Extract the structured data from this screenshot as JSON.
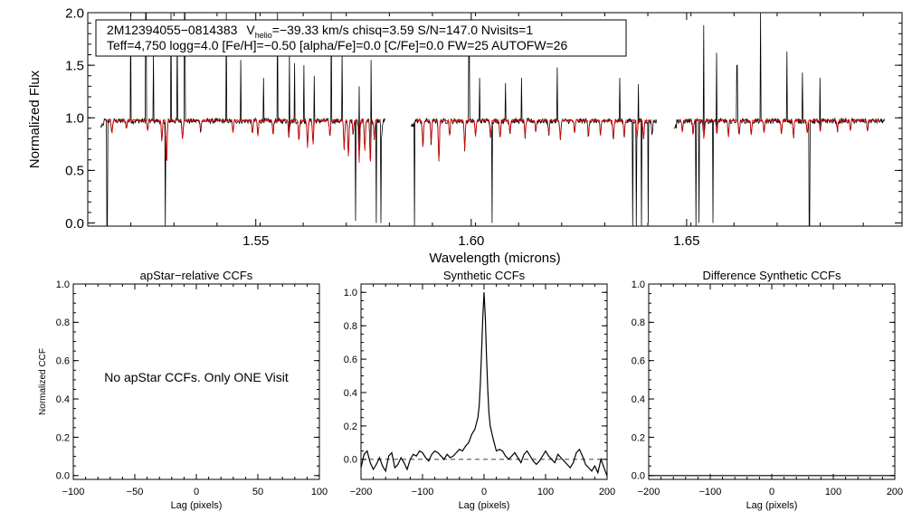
{
  "chart_data": [
    {
      "id": "spectrum",
      "type": "line",
      "xlabel": "Wavelength (microns)",
      "ylabel": "Normalized Flux",
      "xlim": [
        1.511,
        1.7
      ],
      "ylim": [
        -0.03,
        2.0
      ],
      "xticks": [
        1.55,
        1.6,
        1.65
      ],
      "xtick_labels": [
        "1.55",
        "1.60",
        "1.65"
      ],
      "yticks": [
        0.0,
        0.5,
        1.0,
        1.5,
        2.0
      ],
      "ytick_labels": [
        "0.0",
        "0.5",
        "1.0",
        "1.5",
        "2.0"
      ],
      "info": {
        "star_id": "2M12394055−0814383",
        "vhelio_prefix": "V",
        "vhelio_sub": "helio",
        "vhelio_rest": "=−39.33 km/s  chisq=3.59  S/N=147.0  Nvisits=1",
        "line2": "Teff=4,750 logg=4.0 [Fe/H]=−0.50 [alpha/Fe]=0.0 [C/Fe]=0.0 FW=25 AUTOFW=26"
      },
      "chips": [
        [
          1.514,
          1.58
        ],
        [
          1.586,
          1.643
        ],
        [
          1.647,
          1.696
        ]
      ],
      "series": [
        {
          "name": "observed",
          "color": "#000000",
          "continuum": 0.97,
          "emission_spikes": [
            [
              1.521,
              2.0
            ],
            [
              1.5245,
              2.0
            ],
            [
              1.5262,
              1.62
            ],
            [
              1.5303,
              2.0
            ],
            [
              1.5318,
              1.85
            ],
            [
              1.5335,
              2.0
            ],
            [
              1.5432,
              2.0
            ],
            [
              1.5465,
              1.55
            ],
            [
              1.5518,
              1.38
            ],
            [
              1.555,
              2.0
            ],
            [
              1.5578,
              1.6
            ],
            [
              1.559,
              1.52
            ],
            [
              1.5612,
              1.5
            ],
            [
              1.5636,
              1.4
            ],
            [
              1.5675,
              2.0
            ],
            [
              1.57,
              1.62
            ],
            [
              1.574,
              1.3
            ],
            [
              1.5768,
              1.55
            ],
            [
              1.578,
              1.38
            ],
            [
              1.5995,
              1.72
            ],
            [
              1.602,
              1.38
            ],
            [
              1.608,
              1.33
            ],
            [
              1.6117,
              1.38
            ],
            [
              1.62,
              1.48
            ],
            [
              1.6345,
              1.38
            ],
            [
              1.6388,
              1.32
            ],
            [
              1.654,
              1.88
            ],
            [
              1.657,
              1.62
            ],
            [
              1.6617,
              1.5
            ],
            [
              1.6672,
              2.0
            ],
            [
              1.6733,
              1.63
            ],
            [
              1.6769,
              1.43
            ],
            [
              1.681,
              1.38
            ]
          ],
          "absorption_spikes": [
            [
              1.5155,
              -0.03
            ],
            [
              1.529,
              -0.03
            ],
            [
              1.5732,
              0.02
            ],
            [
              1.578,
              0.0
            ],
            [
              1.579,
              0.0
            ],
            [
              1.5868,
              -0.03
            ],
            [
              1.6048,
              0.0
            ],
            [
              1.6375,
              -0.03
            ],
            [
              1.6383,
              -0.03
            ],
            [
              1.6395,
              -0.03
            ],
            [
              1.6411,
              0.0
            ],
            [
              1.6522,
              -0.03
            ],
            [
              1.6529,
              0.0
            ],
            [
              1.6561,
              0.0
            ],
            [
              1.6785,
              -0.03
            ]
          ]
        },
        {
          "name": "synthetic",
          "color": "#dd0000",
          "continuum": 0.975,
          "lines": [
            [
              1.5166,
              0.85
            ],
            [
              1.52,
              0.9
            ],
            [
              1.5249,
              0.88
            ],
            [
              1.5282,
              0.77
            ],
            [
              1.5293,
              0.56
            ],
            [
              1.533,
              0.8
            ],
            [
              1.5372,
              0.88
            ],
            [
              1.5447,
              0.86
            ],
            [
              1.5492,
              0.85
            ],
            [
              1.5505,
              0.83
            ],
            [
              1.554,
              0.85
            ],
            [
              1.5577,
              0.82
            ],
            [
              1.56,
              0.78
            ],
            [
              1.562,
              0.72
            ],
            [
              1.5633,
              0.75
            ],
            [
              1.5672,
              0.82
            ],
            [
              1.5705,
              0.7
            ],
            [
              1.5715,
              0.63
            ],
            [
              1.5726,
              0.86
            ],
            [
              1.574,
              0.58
            ],
            [
              1.5753,
              0.69
            ],
            [
              1.5766,
              0.56
            ],
            [
              1.5775,
              0.8
            ],
            [
              1.5792,
              0.8
            ],
            [
              1.5888,
              0.72
            ],
            [
              1.5907,
              0.76
            ],
            [
              1.5925,
              0.6
            ],
            [
              1.595,
              0.83
            ],
            [
              1.5985,
              0.7
            ],
            [
              1.601,
              0.82
            ],
            [
              1.6045,
              0.83
            ],
            [
              1.6067,
              0.81
            ],
            [
              1.609,
              0.86
            ],
            [
              1.6125,
              0.82
            ],
            [
              1.615,
              0.87
            ],
            [
              1.618,
              0.84
            ],
            [
              1.6207,
              0.8
            ],
            [
              1.624,
              0.85
            ],
            [
              1.6272,
              0.83
            ],
            [
              1.63,
              0.82
            ],
            [
              1.633,
              0.8
            ],
            [
              1.6355,
              0.82
            ],
            [
              1.6385,
              0.81
            ],
            [
              1.64,
              0.8
            ],
            [
              1.642,
              0.84
            ],
            [
              1.649,
              0.86
            ],
            [
              1.6515,
              0.83
            ],
            [
              1.654,
              0.8
            ],
            [
              1.657,
              0.85
            ],
            [
              1.6597,
              0.82
            ],
            [
              1.6622,
              0.85
            ],
            [
              1.665,
              0.83
            ],
            [
              1.668,
              0.86
            ],
            [
              1.672,
              0.84
            ],
            [
              1.6748,
              0.82
            ],
            [
              1.678,
              0.85
            ],
            [
              1.681,
              0.86
            ],
            [
              1.685,
              0.88
            ],
            [
              1.688,
              0.87
            ],
            [
              1.692,
              0.88
            ]
          ]
        }
      ]
    },
    {
      "id": "apstar",
      "type": "line",
      "title": "apStar−relative CCFs",
      "xlabel": "Lag (pixels)",
      "ylabel": "Normalized CCF",
      "xlim": [
        -100,
        100
      ],
      "ylim": [
        -0.02,
        1.0
      ],
      "xticks": [
        -100,
        -50,
        0,
        50,
        100
      ],
      "xtick_labels": [
        "−100",
        "−50",
        "0",
        "50",
        "100"
      ],
      "yticks": [
        0.0,
        0.2,
        0.4,
        0.6,
        0.8,
        1.0
      ],
      "ytick_labels": [
        "0.0",
        "0.2",
        "0.4",
        "0.6",
        "0.8",
        "1.0"
      ],
      "annotation": "No apStar CCFs.  Only ONE Visit",
      "series": []
    },
    {
      "id": "synthetic",
      "type": "line",
      "title": "Synthetic CCFs",
      "xlabel": "Lag (pixels)",
      "ylabel": "",
      "xlim": [
        -200,
        200
      ],
      "ylim": [
        -0.12,
        1.05
      ],
      "xticks": [
        -200,
        -100,
        0,
        100,
        200
      ],
      "xtick_labels": [
        "−200",
        "−100",
        "0",
        "100",
        "200"
      ],
      "yticks": [
        0.0,
        0.2,
        0.4,
        0.6,
        0.8,
        1.0
      ],
      "ytick_labels": [
        "0.0",
        "0.2",
        "0.4",
        "0.6",
        "0.8",
        "1.0"
      ],
      "reference_line": 0.0,
      "series": [
        {
          "name": "ccf",
          "color": "#000000",
          "x": [
            -200,
            -195,
            -190,
            -185,
            -180,
            -175,
            -170,
            -165,
            -160,
            -155,
            -150,
            -145,
            -140,
            -135,
            -130,
            -125,
            -120,
            -115,
            -110,
            -105,
            -100,
            -95,
            -90,
            -85,
            -80,
            -75,
            -70,
            -65,
            -60,
            -55,
            -50,
            -45,
            -40,
            -35,
            -30,
            -25,
            -20,
            -15,
            -10,
            -8,
            -6,
            -4,
            -2,
            0,
            2,
            4,
            6,
            8,
            10,
            15,
            20,
            25,
            30,
            35,
            40,
            45,
            50,
            55,
            60,
            65,
            70,
            75,
            80,
            85,
            90,
            95,
            100,
            105,
            110,
            115,
            120,
            125,
            130,
            135,
            140,
            145,
            150,
            155,
            160,
            165,
            170,
            175,
            180,
            185,
            190,
            195,
            200
          ],
          "y": [
            -0.05,
            0.03,
            0.05,
            -0.02,
            -0.06,
            -0.03,
            0.01,
            -0.04,
            -0.07,
            0.02,
            0.04,
            -0.05,
            -0.03,
            0.01,
            -0.02,
            -0.06,
            0.0,
            0.03,
            0.02,
            0.05,
            0.04,
            0.01,
            -0.01,
            0.03,
            0.05,
            0.04,
            0.02,
            0.0,
            0.03,
            0.01,
            0.02,
            0.04,
            0.06,
            0.05,
            0.08,
            0.1,
            0.15,
            0.18,
            0.25,
            0.32,
            0.45,
            0.65,
            0.85,
            1.0,
            0.85,
            0.62,
            0.42,
            0.28,
            0.2,
            0.12,
            0.05,
            0.06,
            0.05,
            0.02,
            0.0,
            0.02,
            0.04,
            0.01,
            -0.02,
            0.03,
            0.05,
            0.02,
            -0.01,
            -0.03,
            -0.01,
            0.02,
            0.05,
            0.02,
            0.0,
            -0.02,
            0.03,
            0.01,
            -0.01,
            -0.03,
            -0.05,
            -0.02,
            0.04,
            0.06,
            0.02,
            -0.03,
            -0.05,
            -0.07,
            -0.04,
            -0.08,
            0.0,
            -0.05,
            -0.1
          ]
        }
      ]
    },
    {
      "id": "difference",
      "type": "line",
      "title": "Difference Synthetic CCFs",
      "xlabel": "Lag (pixels)",
      "ylabel": "",
      "xlim": [
        -200,
        200
      ],
      "ylim": [
        -0.02,
        1.0
      ],
      "xticks": [
        -200,
        -100,
        0,
        100,
        200
      ],
      "xtick_labels": [
        "−200",
        "−100",
        "0",
        "100",
        "200"
      ],
      "yticks": [
        0.0,
        0.2,
        0.4,
        0.6,
        0.8,
        1.0
      ],
      "ytick_labels": [
        "0.0",
        "0.2",
        "0.4",
        "0.6",
        "0.8",
        "1.0"
      ],
      "series": [
        {
          "name": "difference",
          "color": "#000000",
          "x": [
            -200,
            200
          ],
          "y": [
            0.0,
            0.0
          ]
        }
      ]
    }
  ]
}
